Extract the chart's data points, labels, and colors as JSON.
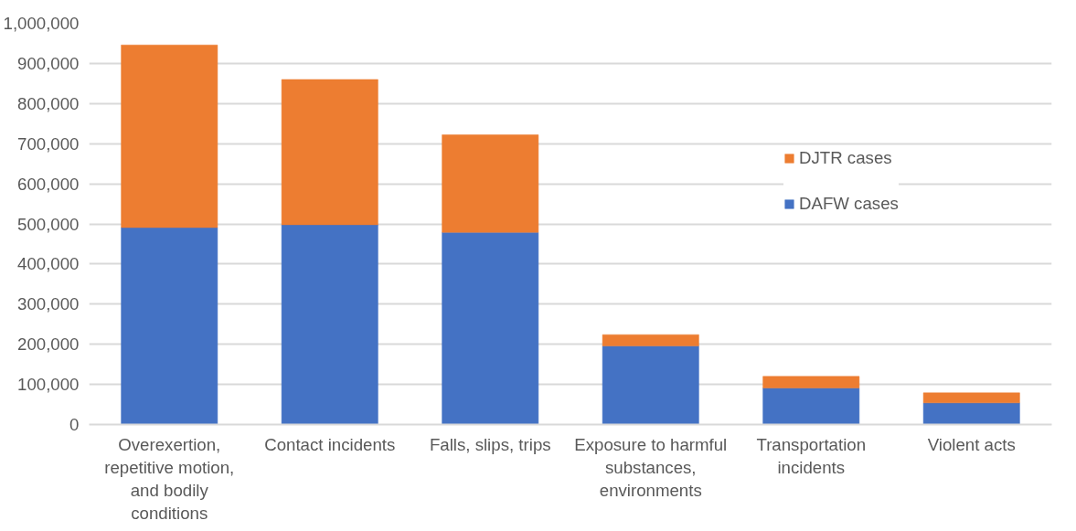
{
  "chart_data": {
    "type": "bar",
    "stacked": true,
    "categories": [
      "Overexertion, repetitive motion, and bodily conditions",
      "Contact incidents",
      "Falls, slips, trips",
      "Exposure to harmful substances, environments",
      "Transportation incidents",
      "Violent acts"
    ],
    "series": [
      {
        "name": "DAFW cases",
        "color": "#4472c4",
        "values": [
          491000,
          498000,
          479000,
          196000,
          91000,
          54000
        ]
      },
      {
        "name": "DJTR cases",
        "color": "#ed7d31",
        "values": [
          455000,
          362000,
          243000,
          28000,
          29000,
          25000
        ]
      }
    ],
    "ylim": [
      0,
      1000000
    ],
    "yticks": [
      {
        "value": 0,
        "label": "0"
      },
      {
        "value": 100000,
        "label": "100,000"
      },
      {
        "value": 200000,
        "label": "200,000"
      },
      {
        "value": 300000,
        "label": "300,000"
      },
      {
        "value": 400000,
        "label": "400,000"
      },
      {
        "value": 500000,
        "label": "500,000"
      },
      {
        "value": 600000,
        "label": "600,000"
      },
      {
        "value": 700000,
        "label": "700,000"
      },
      {
        "value": 800000,
        "label": "800,000"
      },
      {
        "value": 900000,
        "label": "900,000"
      },
      {
        "value": 1000000,
        "label": "1,000,000"
      }
    ],
    "grid": "y",
    "legend": "right"
  }
}
